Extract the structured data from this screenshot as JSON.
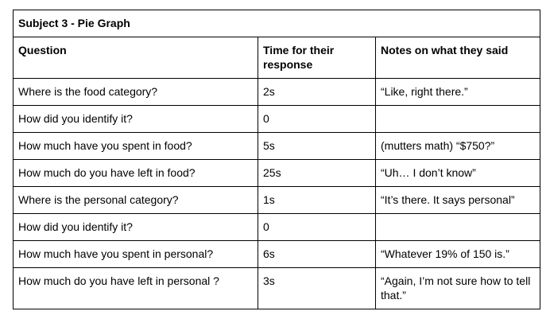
{
  "table": {
    "title": "Subject 3 - Pie Graph",
    "headers": [
      "Question",
      "Time for their response",
      "Notes on what they said"
    ],
    "rows": [
      {
        "question": "Where is the food category?",
        "time": "2s",
        "notes": "“Like, right there.”"
      },
      {
        "question": "How did you identify it?",
        "time": "0",
        "notes": ""
      },
      {
        "question": "How much have you spent in food?",
        "time": "5s",
        "notes": "(mutters math) “$750?”"
      },
      {
        "question": "How much do you have left in food?",
        "time": "25s",
        "notes": "“Uh… I don’t know”"
      },
      {
        "question": "Where is the personal category?",
        "time": "1s",
        "notes": "“It’s there. It says personal”"
      },
      {
        "question": "How did you identify it?",
        "time": "0",
        "notes": ""
      },
      {
        "question": "How much have you spent in personal?",
        "time": "6s",
        "notes": "“Whatever 19% of 150 is.”"
      },
      {
        "question": "How much do you have left in personal ?",
        "time": "3s",
        "notes": "“Again, I’m not sure how to tell that.”"
      }
    ]
  }
}
